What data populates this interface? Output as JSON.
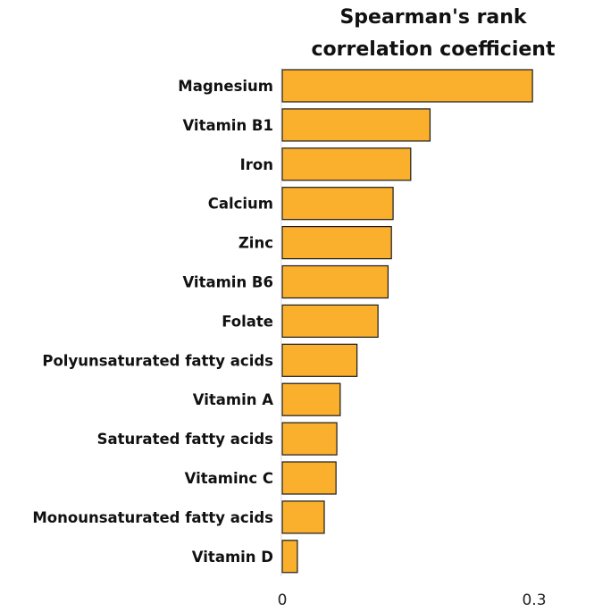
{
  "chart_data": {
    "type": "bar",
    "orientation": "horizontal",
    "title_lines": [
      "Spearman's rank",
      "correlation coefficient"
    ],
    "categories": [
      "Magnesium",
      "Vitamin B1",
      "Iron",
      "Calcium",
      "Zinc",
      "Vitamin B6",
      "Folate",
      "Polyunsaturated fatty acids",
      "Vitamin A",
      "Saturated fatty acids",
      "Vitaminc C",
      "Monounsaturated fatty acids",
      "Vitamin D"
    ],
    "values": [
      0.298,
      0.176,
      0.153,
      0.132,
      0.13,
      0.126,
      0.114,
      0.089,
      0.069,
      0.065,
      0.064,
      0.05,
      0.018
    ],
    "xlim": [
      0,
      0.3
    ],
    "xticks": [
      0,
      0.3
    ],
    "xtick_labels": [
      "0",
      "0.3"
    ],
    "grid": false,
    "bar_color": "#FBB02D",
    "bar_edge_color": "#1a1a1a"
  }
}
